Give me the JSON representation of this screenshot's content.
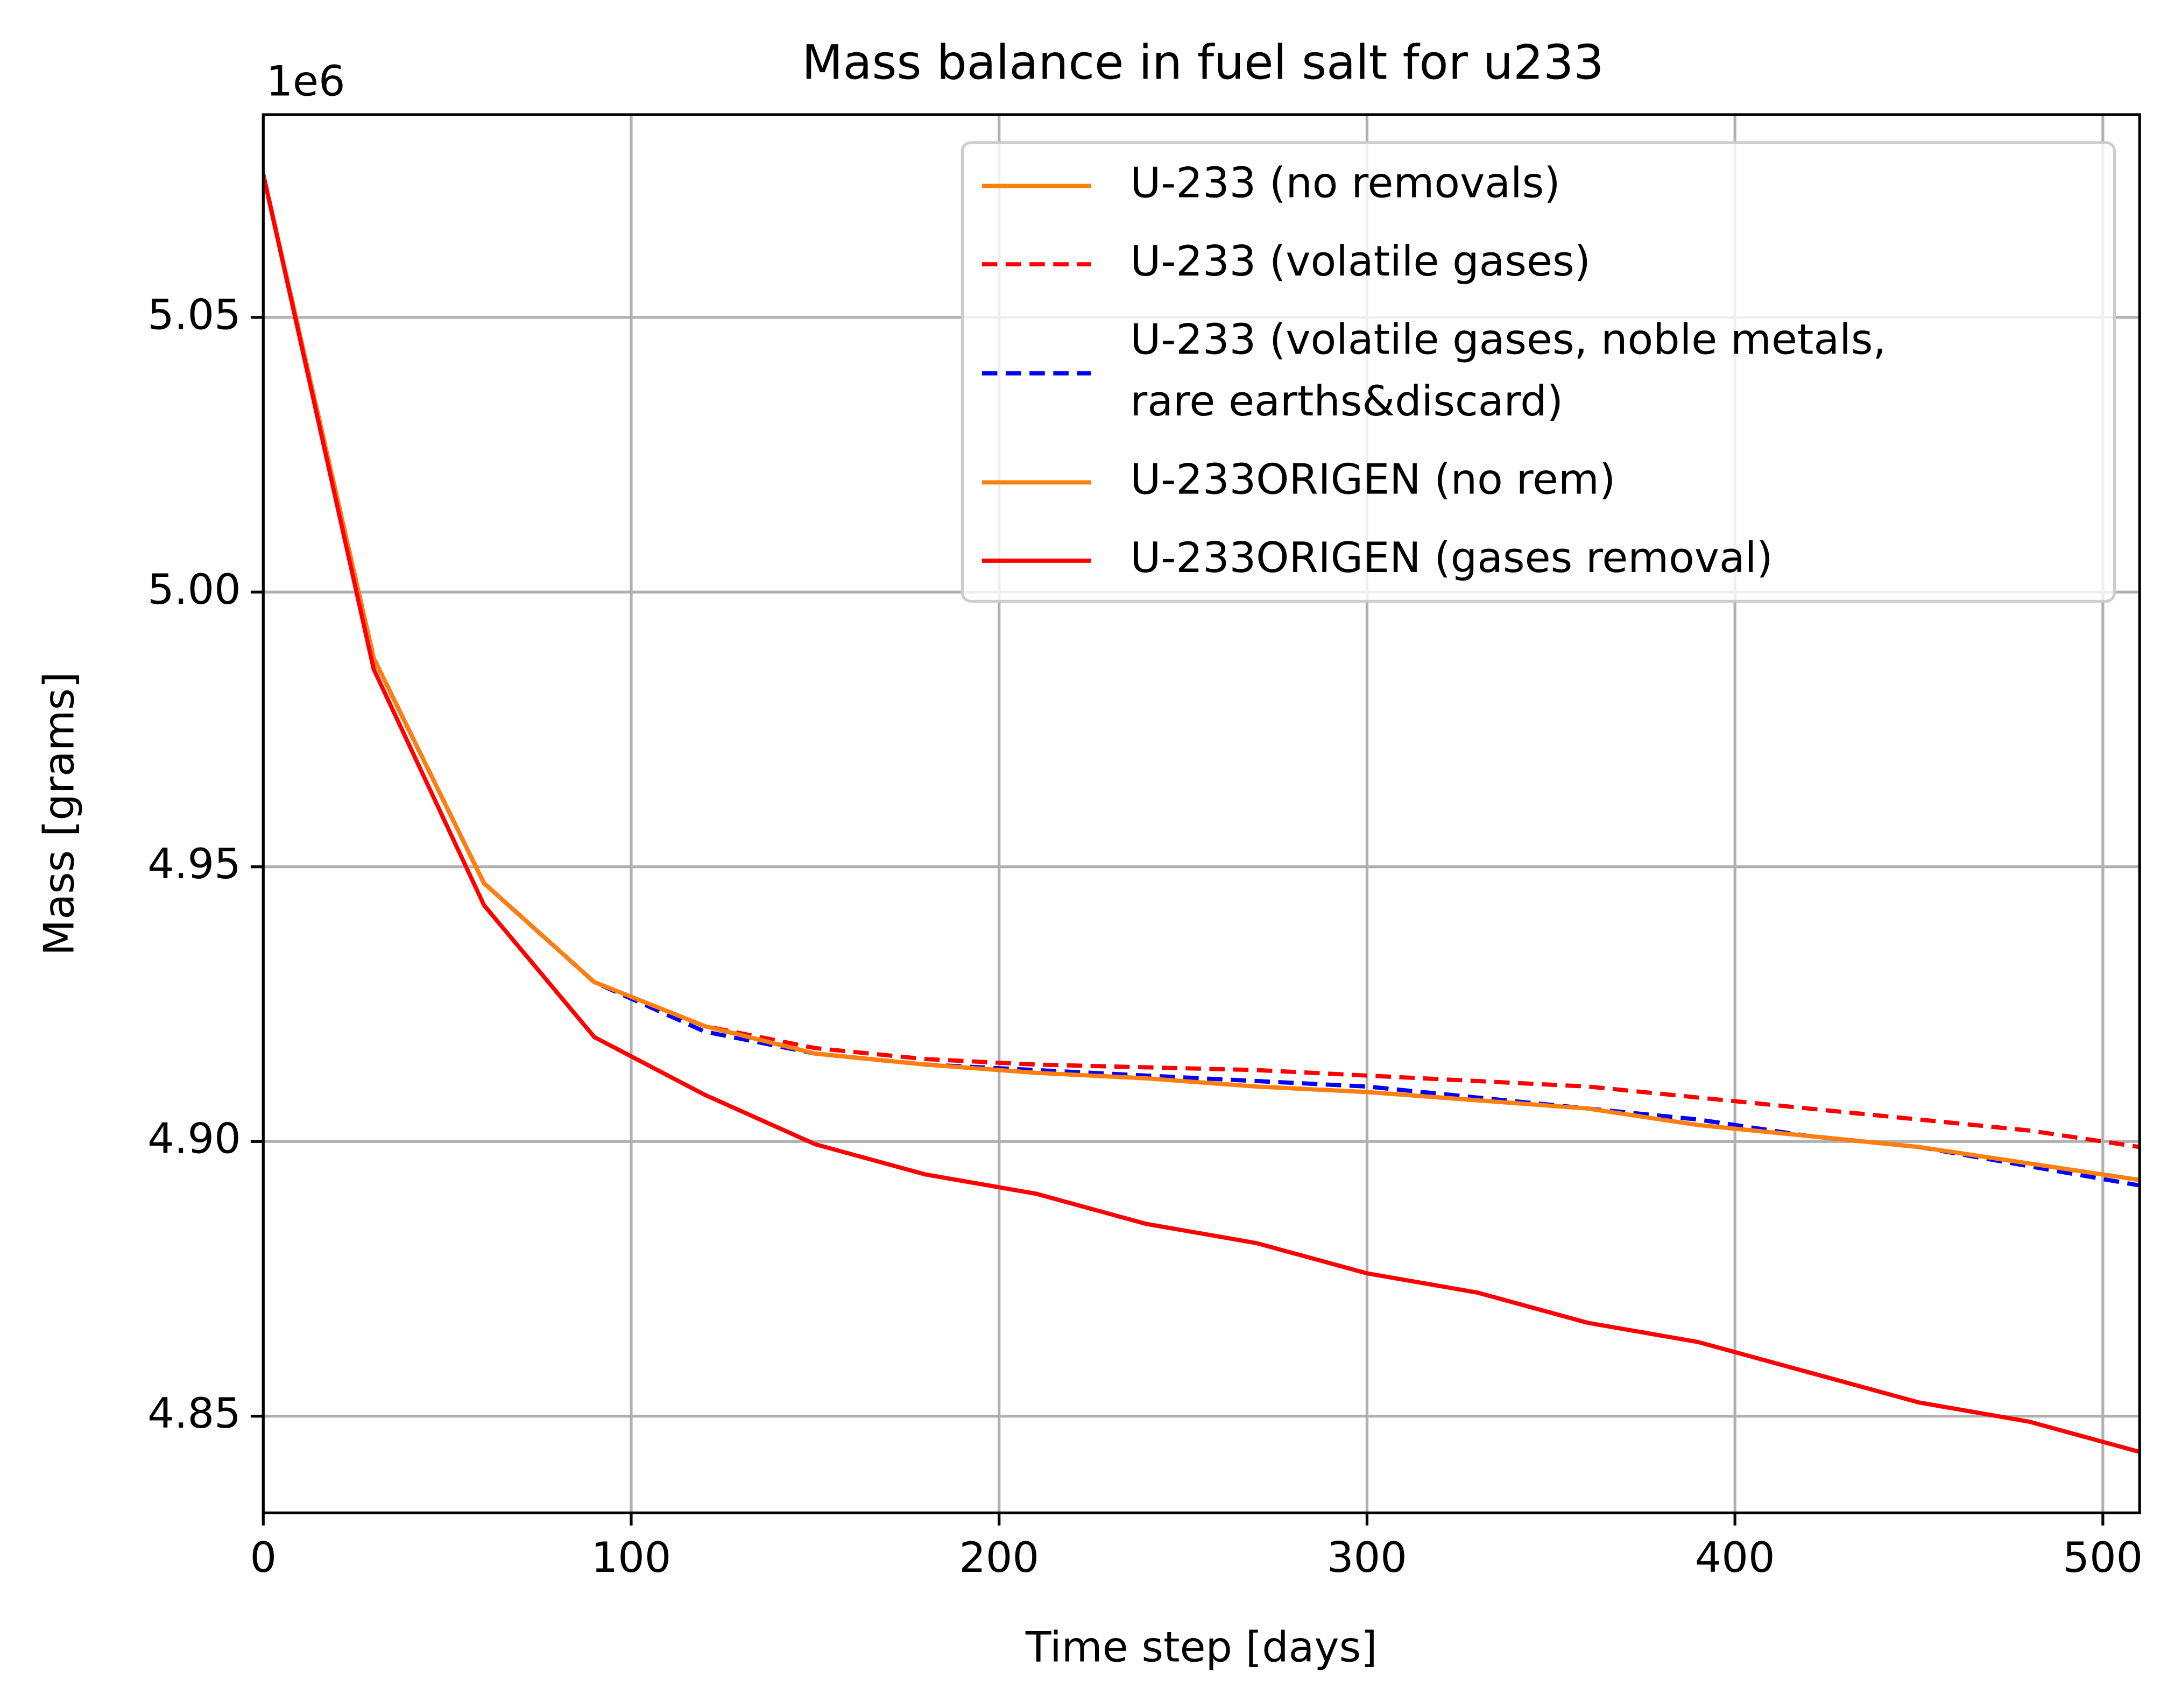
{
  "chart_data": {
    "type": "line",
    "title": "Mass balance in fuel salt for u233",
    "x_label": "Time step [days]",
    "y_label": "Mass [grams]",
    "y_offset": "1e6",
    "x": [
      0,
      30,
      60,
      90,
      120,
      150,
      180,
      210,
      240,
      270,
      300,
      330,
      360,
      390,
      420,
      450,
      480,
      510
    ],
    "series": [
      {
        "name": "U-233 (no removals)",
        "color": "#ff7f0e",
        "linestyle": "solid",
        "values": [
          5.076,
          4.988,
          4.947,
          4.929,
          4.921,
          4.916,
          4.914,
          4.9125,
          4.9115,
          4.91,
          4.909,
          4.9075,
          4.906,
          4.903,
          4.901,
          4.899,
          4.896,
          4.893
        ]
      },
      {
        "name": "U-233 (volatile gases)",
        "color": "#ff0000",
        "linestyle": "dashed",
        "values": [
          5.076,
          4.988,
          4.947,
          4.929,
          4.921,
          4.917,
          4.915,
          4.914,
          4.9135,
          4.913,
          4.912,
          4.911,
          4.91,
          4.908,
          4.906,
          4.904,
          4.902,
          4.899
        ]
      },
      {
        "name": "U-233 (volatile gases, noble metals,\nrare earths&discard)",
        "color": "#0000ff",
        "linestyle": "dashed",
        "values": [
          5.076,
          4.988,
          4.947,
          4.929,
          4.92,
          4.916,
          4.914,
          4.913,
          4.912,
          4.911,
          4.91,
          4.908,
          4.906,
          4.904,
          4.901,
          4.899,
          4.8955,
          4.892
        ]
      },
      {
        "name": "U-233ORIGEN (no rem)",
        "color": "#ff7f0e",
        "linestyle": "solid",
        "values": [
          5.076,
          4.988,
          4.947,
          4.929,
          4.921,
          4.916,
          4.914,
          4.9125,
          4.9115,
          4.91,
          4.909,
          4.9075,
          4.906,
          4.903,
          4.901,
          4.899,
          4.896,
          4.893
        ]
      },
      {
        "name": "U-233ORIGEN (gases removal)",
        "color": "#ff0000",
        "linestyle": "solid",
        "values": [
          5.076,
          4.986,
          4.943,
          4.919,
          4.9085,
          4.8995,
          4.894,
          4.8905,
          4.885,
          4.8815,
          4.876,
          4.8725,
          4.867,
          4.8635,
          4.858,
          4.8525,
          4.849,
          4.8435
        ]
      }
    ],
    "xlim": [
      0,
      510
    ],
    "xticks": [
      0,
      100,
      200,
      300,
      400,
      500
    ],
    "ylim": [
      4.8324,
      5.0869
    ],
    "yticks": [
      4.85,
      {
        "value": 4.9,
        "label": "4.90"
      },
      4.95,
      {
        "value": 5.0,
        "label": "5.00"
      },
      5.05
    ],
    "grid": true,
    "legend": "upper right"
  }
}
